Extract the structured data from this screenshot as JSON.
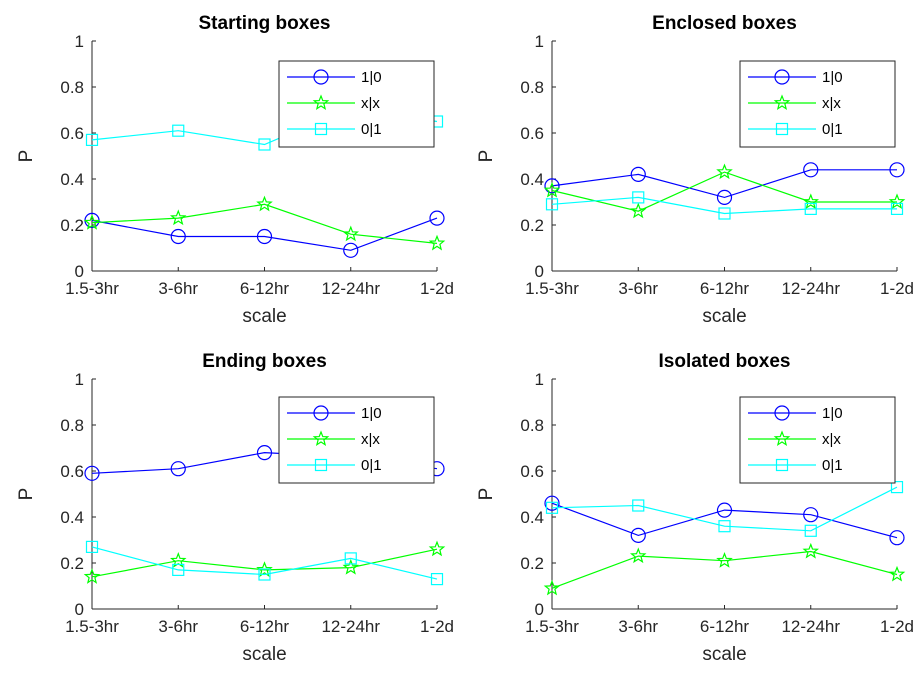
{
  "chart_data": [
    {
      "type": "line",
      "title": "Starting boxes",
      "xlabel": "scale",
      "ylabel": "P",
      "categories": [
        "1.5-3hr",
        "3-6hr",
        "6-12hr",
        "12-24hr",
        "1-2d"
      ],
      "ylim": [
        0,
        1
      ],
      "yticks": [
        "0",
        "0.2",
        "0.4",
        "0.6",
        "0.8",
        "1"
      ],
      "legend": "top-right",
      "series": [
        {
          "name": "1|0",
          "color": "#0000ff",
          "marker": "circle",
          "values": [
            0.22,
            0.15,
            0.15,
            0.09,
            0.23
          ]
        },
        {
          "name": "x|x",
          "color": "#00ff00",
          "marker": "star",
          "values": [
            0.21,
            0.23,
            0.29,
            0.16,
            0.12
          ]
        },
        {
          "name": "0|1",
          "color": "#00ffff",
          "marker": "square",
          "values": [
            0.57,
            0.61,
            0.55,
            0.71,
            0.65
          ]
        }
      ]
    },
    {
      "type": "line",
      "title": "Enclosed boxes",
      "xlabel": "scale",
      "ylabel": "P",
      "categories": [
        "1.5-3hr",
        "3-6hr",
        "6-12hr",
        "12-24hr",
        "1-2d"
      ],
      "ylim": [
        0,
        1
      ],
      "yticks": [
        "0",
        "0.2",
        "0.4",
        "0.6",
        "0.8",
        "1"
      ],
      "legend": "top-right",
      "series": [
        {
          "name": "1|0",
          "color": "#0000ff",
          "marker": "circle",
          "values": [
            0.37,
            0.42,
            0.32,
            0.44,
            0.44
          ]
        },
        {
          "name": "x|x",
          "color": "#00ff00",
          "marker": "star",
          "values": [
            0.35,
            0.26,
            0.43,
            0.3,
            0.3
          ]
        },
        {
          "name": "0|1",
          "color": "#00ffff",
          "marker": "square",
          "values": [
            0.29,
            0.32,
            0.25,
            0.27,
            0.27
          ]
        }
      ]
    },
    {
      "type": "line",
      "title": "Ending boxes",
      "xlabel": "scale",
      "ylabel": "P",
      "categories": [
        "1.5-3hr",
        "3-6hr",
        "6-12hr",
        "12-24hr",
        "1-2d"
      ],
      "ylim": [
        0,
        1
      ],
      "yticks": [
        "0",
        "0.2",
        "0.4",
        "0.6",
        "0.8",
        "1"
      ],
      "legend": "top-right",
      "series": [
        {
          "name": "1|0",
          "color": "#0000ff",
          "marker": "circle",
          "values": [
            0.59,
            0.61,
            0.68,
            0.66,
            0.61
          ]
        },
        {
          "name": "x|x",
          "color": "#00ff00",
          "marker": "star",
          "values": [
            0.14,
            0.21,
            0.17,
            0.18,
            0.26
          ]
        },
        {
          "name": "0|1",
          "color": "#00ffff",
          "marker": "square",
          "values": [
            0.27,
            0.17,
            0.15,
            0.22,
            0.13
          ]
        }
      ]
    },
    {
      "type": "line",
      "title": "Isolated boxes",
      "xlabel": "scale",
      "ylabel": "P",
      "categories": [
        "1.5-3hr",
        "3-6hr",
        "6-12hr",
        "12-24hr",
        "1-2d"
      ],
      "ylim": [
        0,
        1
      ],
      "yticks": [
        "0",
        "0.2",
        "0.4",
        "0.6",
        "0.8",
        "1"
      ],
      "legend": "top-right",
      "series": [
        {
          "name": "1|0",
          "color": "#0000ff",
          "marker": "circle",
          "values": [
            0.46,
            0.32,
            0.43,
            0.41,
            0.31
          ]
        },
        {
          "name": "x|x",
          "color": "#00ff00",
          "marker": "star",
          "values": [
            0.09,
            0.23,
            0.21,
            0.25,
            0.15
          ]
        },
        {
          "name": "0|1",
          "color": "#00ffff",
          "marker": "square",
          "values": [
            0.44,
            0.45,
            0.36,
            0.34,
            0.53
          ]
        }
      ]
    }
  ]
}
